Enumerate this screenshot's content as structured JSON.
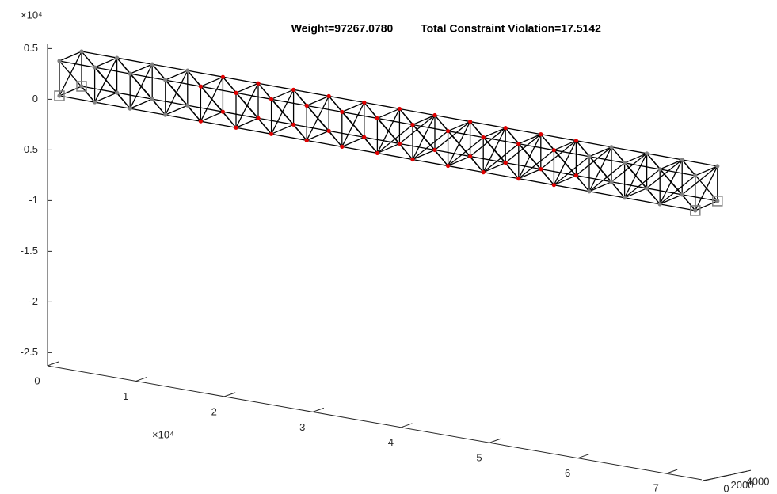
{
  "chart_data": {
    "type": "truss3d",
    "title": "Weight=97267.0780",
    "subtitle": "Total Constraint Violation=17.5142",
    "z_exponent": "×10⁴",
    "x_exponent": "×10⁴",
    "zlim": [
      -2.63,
      0.55
    ],
    "zticks": [
      0.5,
      0,
      -0.5,
      -1,
      -1.5,
      -2,
      -2.5
    ],
    "xlim": [
      0,
      7.4
    ],
    "xticks": [
      0,
      1,
      2,
      3,
      4,
      5,
      6,
      7
    ],
    "ylim": [
      -1700,
      4500
    ],
    "yticks": [
      0,
      2000,
      4000
    ]
  }
}
